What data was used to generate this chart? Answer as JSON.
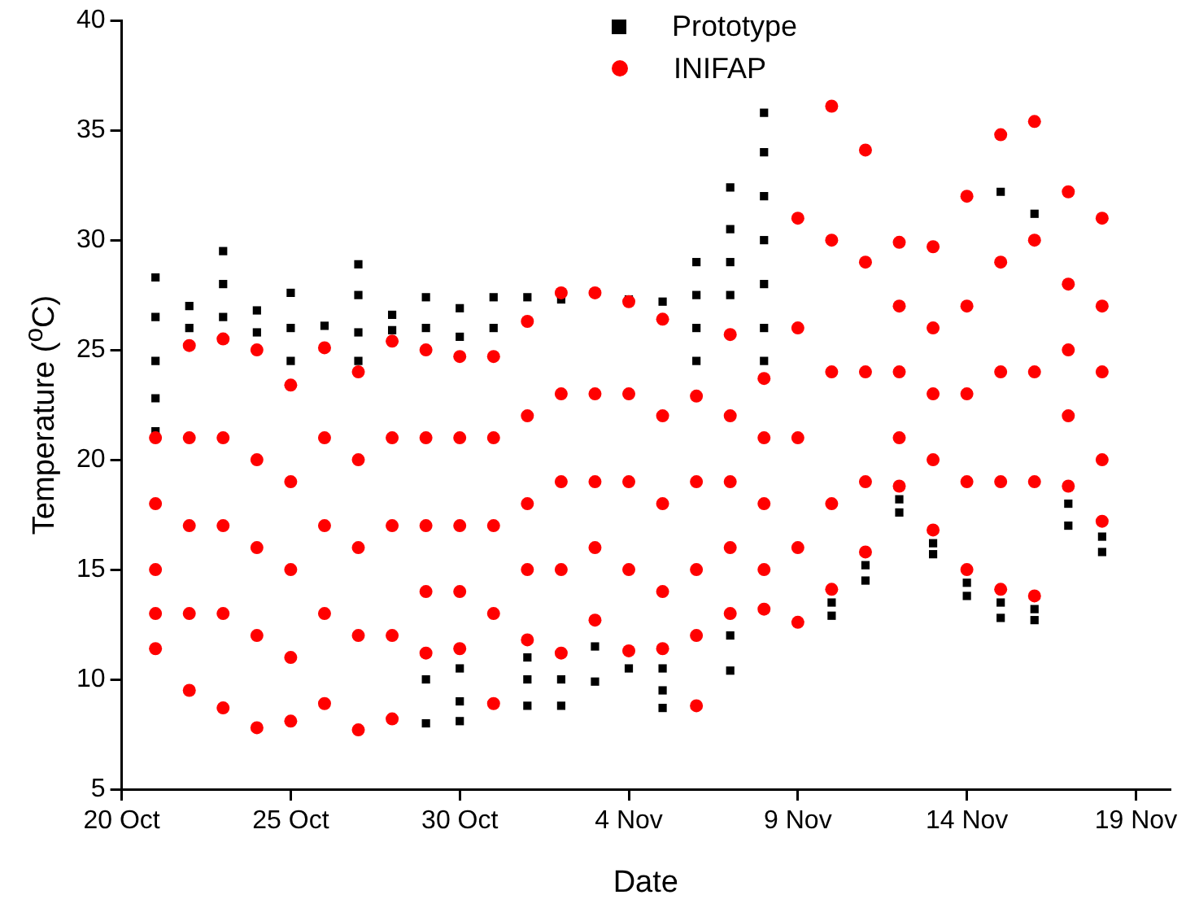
{
  "chart_data": {
    "type": "scatter",
    "xlabel": "Date",
    "ylabel": "Temperature ($^{o}$C)",
    "xlim": [
      "--10-20",
      "--11-20"
    ],
    "xticks": [
      {
        "value": "--10-20",
        "label": "20 Oct"
      },
      {
        "value": "--10-25",
        "label": "25 Oct"
      },
      {
        "value": "--10-30",
        "label": "30 Oct"
      },
      {
        "value": "--11-04",
        "label": "4 Nov"
      },
      {
        "value": "--11-09",
        "label": "9 Nov"
      },
      {
        "value": "--11-14",
        "label": "14 Nov"
      },
      {
        "value": "--11-19",
        "label": "19 Nov"
      }
    ],
    "ylim": [
      5,
      40
    ],
    "yticks": [
      5,
      10,
      15,
      20,
      25,
      30,
      35,
      40
    ],
    "grid": false,
    "legend": "top",
    "series": [
      {
        "name": "Prototype",
        "color": "#000000",
        "marker": "square",
        "x": [
          "--10-21",
          "--10-21",
          "--10-21",
          "--10-21",
          "--10-21",
          "--10-22",
          "--10-22",
          "--10-23",
          "--10-23",
          "--10-23",
          "--10-24",
          "--10-24",
          "--10-25",
          "--10-25",
          "--10-25",
          "--10-26",
          "--10-27",
          "--10-27",
          "--10-27",
          "--10-27",
          "--10-28",
          "--10-28",
          "--10-29",
          "--10-29",
          "--10-29",
          "--10-29",
          "--10-30",
          "--10-30",
          "--10-30",
          "--10-30",
          "--10-30",
          "--10-31",
          "--10-31",
          "--11-01",
          "--11-01",
          "--11-01",
          "--11-01",
          "--11-02",
          "--11-02",
          "--11-02",
          "--11-03",
          "--11-03",
          "--11-04",
          "--11-04",
          "--11-05",
          "--11-05",
          "--11-05",
          "--11-05",
          "--11-06",
          "--11-06",
          "--11-06",
          "--11-06",
          "--11-07",
          "--11-07",
          "--11-07",
          "--11-07",
          "--11-07",
          "--11-07",
          "--11-08",
          "--11-08",
          "--11-08",
          "--11-08",
          "--11-08",
          "--11-08",
          "--11-08",
          "--11-10",
          "--11-10",
          "--11-11",
          "--11-11",
          "--11-12",
          "--11-12",
          "--11-13",
          "--11-13",
          "--11-14",
          "--11-14",
          "--11-15",
          "--11-15",
          "--11-15",
          "--11-16",
          "--11-16",
          "--11-16",
          "--11-17",
          "--11-17",
          "--11-18",
          "--11-18"
        ],
        "values": [
          28.3,
          26.5,
          24.5,
          22.8,
          21.3,
          27.0,
          26.0,
          29.5,
          28.0,
          26.5,
          26.8,
          25.8,
          27.6,
          26.0,
          24.5,
          26.1,
          28.9,
          27.5,
          25.8,
          24.5,
          26.6,
          25.9,
          27.4,
          26.0,
          10.0,
          8.0,
          26.9,
          25.6,
          10.5,
          9.0,
          8.1,
          27.4,
          26.0,
          27.4,
          11.0,
          10.0,
          8.8,
          27.3,
          10.0,
          8.8,
          11.5,
          9.9,
          27.3,
          10.5,
          27.2,
          10.5,
          9.5,
          8.7,
          29.0,
          27.5,
          26.0,
          24.5,
          32.4,
          30.5,
          29.0,
          27.5,
          12.0,
          10.4,
          35.8,
          34.0,
          32.0,
          30.0,
          28.0,
          26.0,
          24.5,
          13.5,
          12.9,
          15.2,
          14.5,
          18.2,
          17.6,
          16.2,
          15.7,
          14.4,
          13.8,
          32.2,
          13.5,
          12.8,
          31.2,
          13.2,
          12.7,
          18.0,
          17.0,
          16.5,
          15.8
        ]
      },
      {
        "name": "INIFAP",
        "color": "#ff0000",
        "marker": "circle",
        "x": [
          "--10-21",
          "--10-21",
          "--10-21",
          "--10-21",
          "--10-21",
          "--10-22",
          "--10-22",
          "--10-22",
          "--10-22",
          "--10-22",
          "--10-23",
          "--10-23",
          "--10-23",
          "--10-23",
          "--10-23",
          "--10-24",
          "--10-24",
          "--10-24",
          "--10-24",
          "--10-24",
          "--10-25",
          "--10-25",
          "--10-25",
          "--10-25",
          "--10-25",
          "--10-26",
          "--10-26",
          "--10-26",
          "--10-26",
          "--10-26",
          "--10-27",
          "--10-27",
          "--10-27",
          "--10-27",
          "--10-27",
          "--10-28",
          "--10-28",
          "--10-28",
          "--10-28",
          "--10-28",
          "--10-29",
          "--10-29",
          "--10-29",
          "--10-29",
          "--10-29",
          "--10-30",
          "--10-30",
          "--10-30",
          "--10-30",
          "--10-30",
          "--10-31",
          "--10-31",
          "--10-31",
          "--10-31",
          "--10-31",
          "--11-01",
          "--11-01",
          "--11-01",
          "--11-01",
          "--11-01",
          "--11-02",
          "--11-02",
          "--11-02",
          "--11-02",
          "--11-02",
          "--11-03",
          "--11-03",
          "--11-03",
          "--11-03",
          "--11-03",
          "--11-04",
          "--11-04",
          "--11-04",
          "--11-04",
          "--11-04",
          "--11-05",
          "--11-05",
          "--11-05",
          "--11-05",
          "--11-05",
          "--11-06",
          "--11-06",
          "--11-06",
          "--11-06",
          "--11-06",
          "--11-07",
          "--11-07",
          "--11-07",
          "--11-07",
          "--11-07",
          "--11-08",
          "--11-08",
          "--11-08",
          "--11-08",
          "--11-08",
          "--11-09",
          "--11-09",
          "--11-09",
          "--11-09",
          "--11-09",
          "--11-10",
          "--11-10",
          "--11-10",
          "--11-10",
          "--11-10",
          "--11-11",
          "--11-11",
          "--11-11",
          "--11-11",
          "--11-11",
          "--11-12",
          "--11-12",
          "--11-12",
          "--11-12",
          "--11-12",
          "--11-13",
          "--11-13",
          "--11-13",
          "--11-13",
          "--11-13",
          "--11-14",
          "--11-14",
          "--11-14",
          "--11-14",
          "--11-14",
          "--11-15",
          "--11-15",
          "--11-15",
          "--11-15",
          "--11-15",
          "--11-16",
          "--11-16",
          "--11-16",
          "--11-16",
          "--11-16",
          "--11-17",
          "--11-17",
          "--11-17",
          "--11-17",
          "--11-17",
          "--11-18",
          "--11-18",
          "--11-18",
          "--11-18",
          "--11-18"
        ],
        "values": [
          21.0,
          18,
          15,
          13,
          11.4,
          25.2,
          21,
          17,
          13,
          9.5,
          25.5,
          21,
          17,
          13,
          8.7,
          25.0,
          20,
          16,
          12,
          7.8,
          23.4,
          19,
          15,
          11,
          8.1,
          25.1,
          21,
          17,
          13,
          8.9,
          24.0,
          20,
          16,
          12,
          7.7,
          25.4,
          21,
          17,
          12,
          8.2,
          25.0,
          21,
          17,
          14,
          11.2,
          24.7,
          21,
          17,
          14,
          11.4,
          24.7,
          21,
          17,
          13,
          8.9,
          26.3,
          22,
          18,
          15,
          11.8,
          27.6,
          23,
          19,
          15,
          11.2,
          27.6,
          23,
          19,
          16,
          12.7,
          27.2,
          23,
          19,
          15,
          11.3,
          26.4,
          22,
          18,
          14,
          11.4,
          22.9,
          19,
          15,
          12,
          8.8,
          25.7,
          22,
          19,
          16,
          13.0,
          23.7,
          21,
          18,
          15,
          13.2,
          31.0,
          26,
          21,
          16,
          12.6,
          36.1,
          30,
          24,
          18,
          14.1,
          34.1,
          29,
          24,
          19,
          15.8,
          29.9,
          27,
          24,
          21,
          18.8,
          29.7,
          26,
          23,
          20,
          16.8,
          32.0,
          27,
          23,
          19,
          15.0,
          34.8,
          29,
          24,
          19,
          14.1,
          35.4,
          30,
          24,
          19,
          13.8,
          32.2,
          28,
          25,
          22,
          18.8,
          31.0,
          27,
          24,
          20,
          17.2
        ]
      }
    ]
  }
}
